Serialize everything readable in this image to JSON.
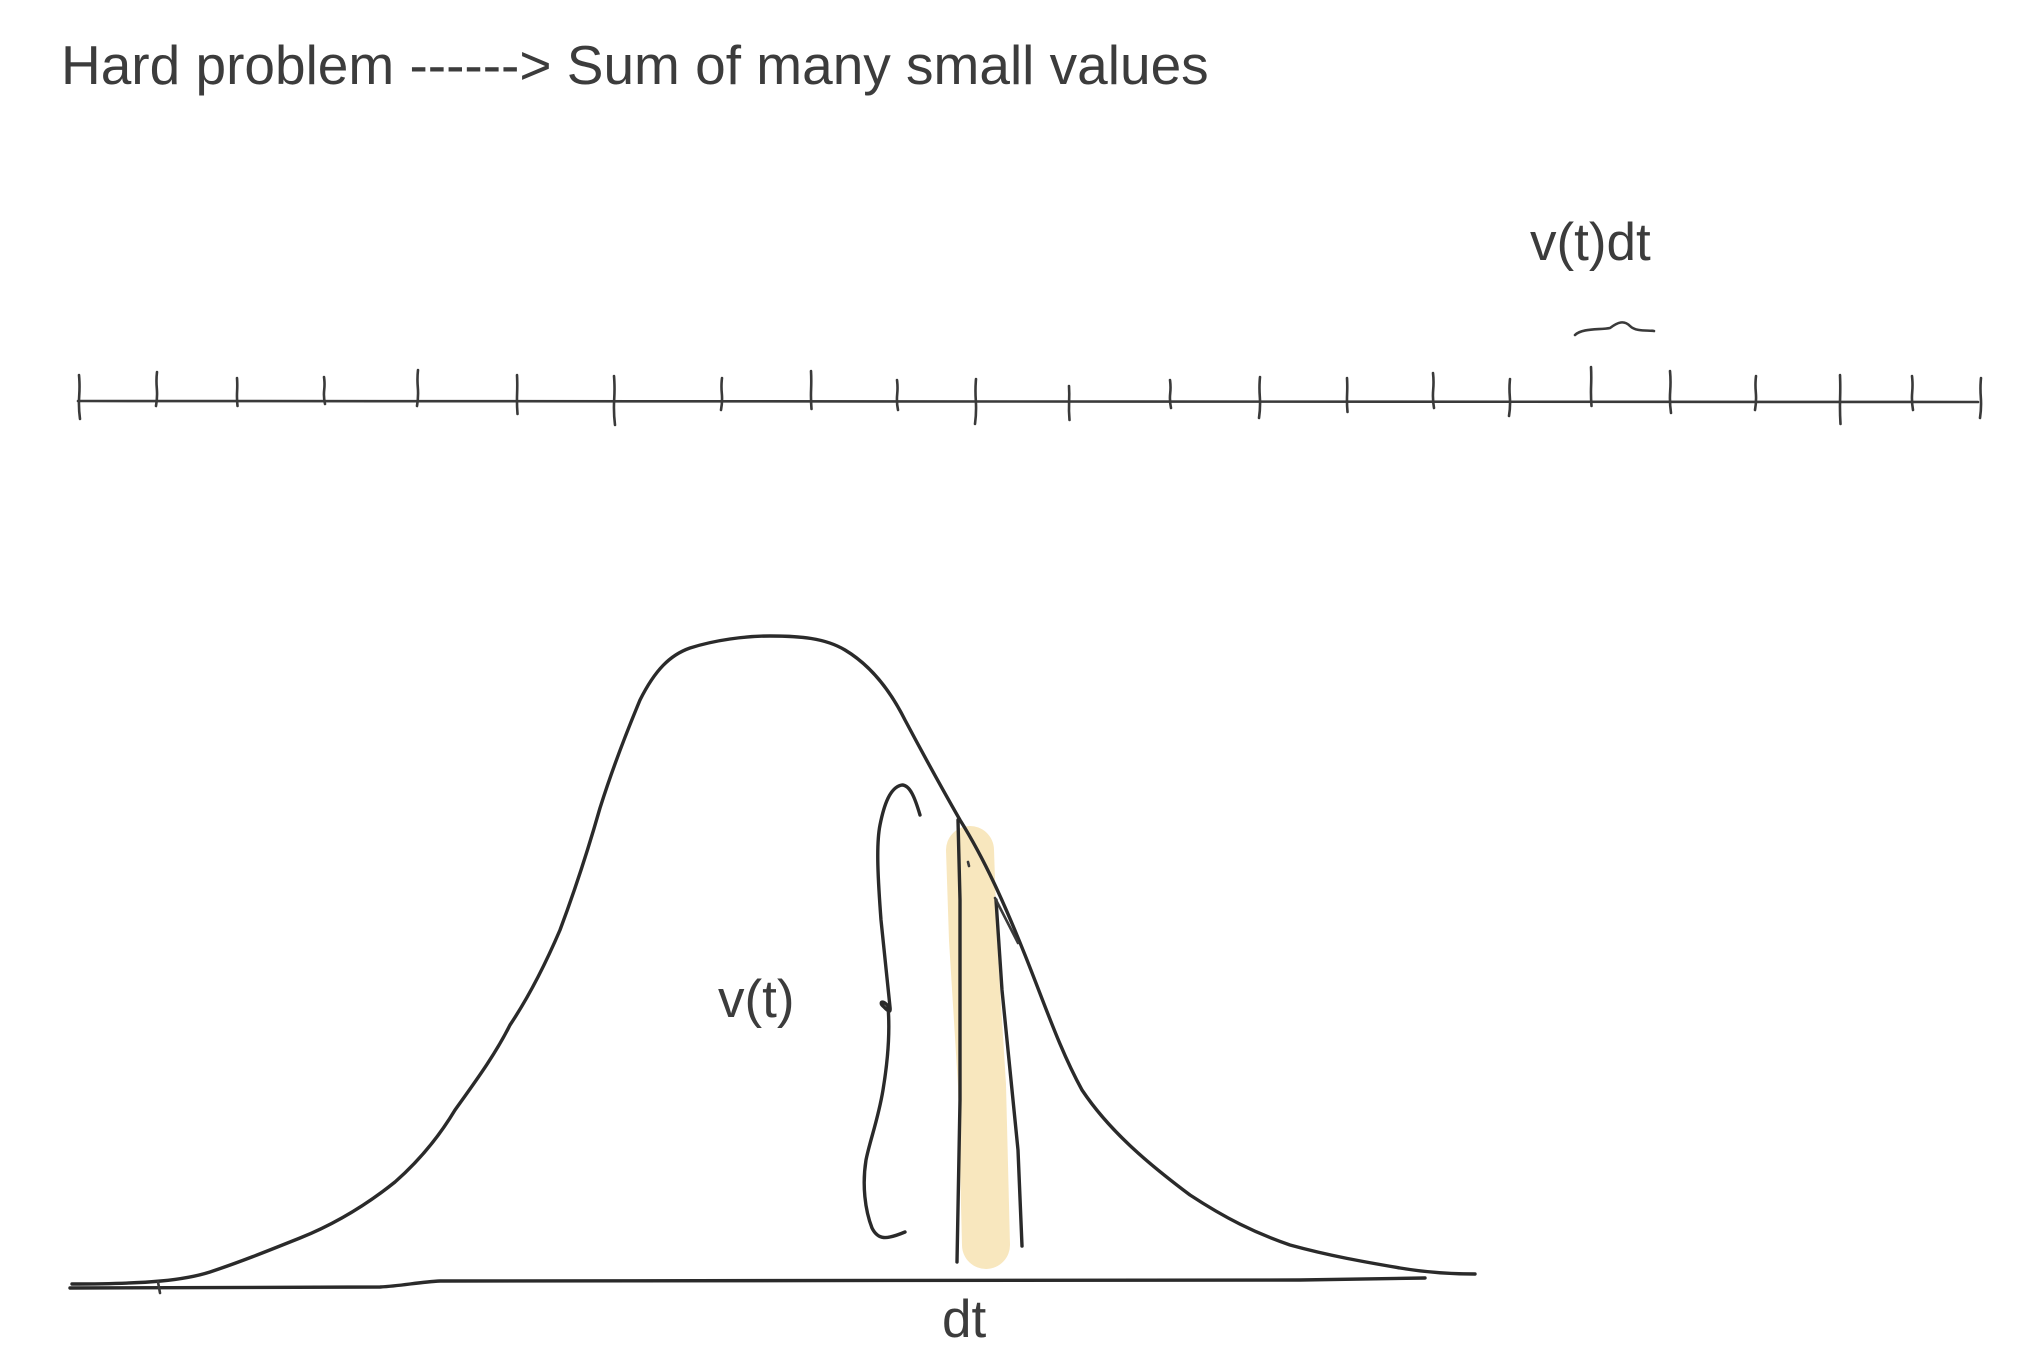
{
  "title": "Hard problem ------> Sum of many small values",
  "labels": {
    "vtdt": "v(t)dt",
    "vt": "v(t)",
    "dt": "dt"
  },
  "colors": {
    "ink": "#2a2a2a",
    "text": "#3c3c3c",
    "highlight": "#f7e3b3"
  }
}
